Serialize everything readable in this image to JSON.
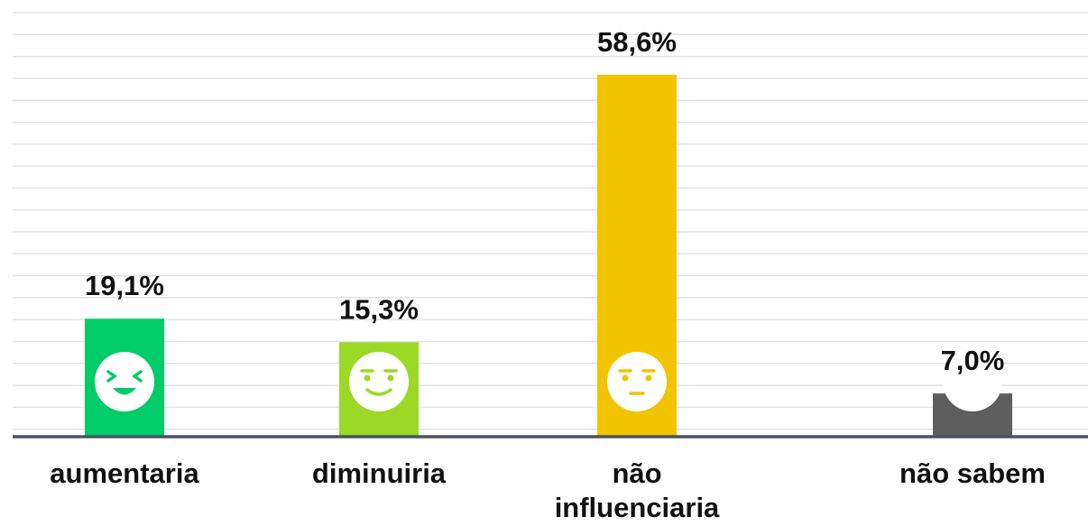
{
  "chart_data": {
    "type": "bar",
    "categories": [
      "aumentaria",
      "diminuiria",
      "não influenciaria",
      "não sabem"
    ],
    "values": [
      19.1,
      15.3,
      58.6,
      7.0
    ],
    "value_labels": [
      "19,1%",
      "15,3%",
      "58,6%",
      "7,0%"
    ],
    "colors": [
      "#00cc6a",
      "#9cd826",
      "#f2c400",
      "#5e5e5e"
    ],
    "ylim": [
      0,
      65
    ]
  }
}
